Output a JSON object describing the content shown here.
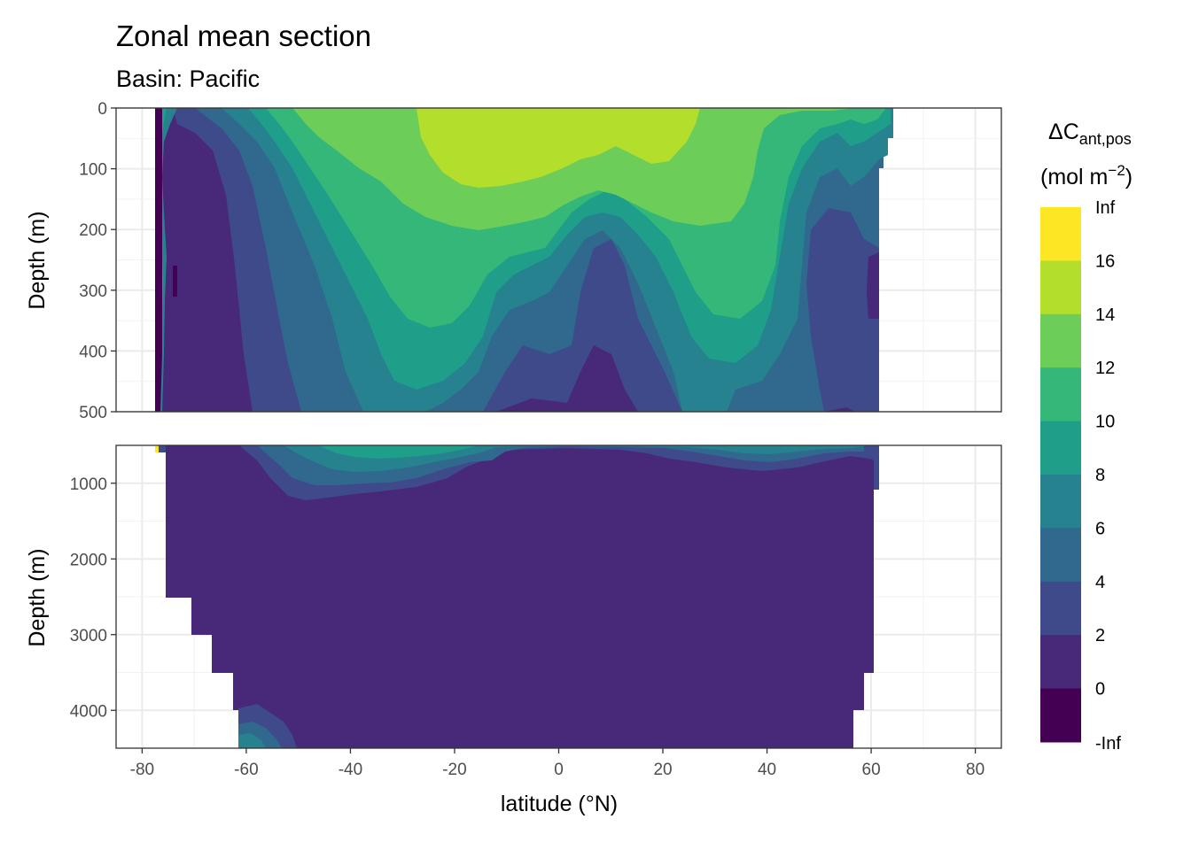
{
  "chart_data": {
    "type": "heatmap",
    "title": "Zonal mean section",
    "subtitle": "Basin: Pacific",
    "xlabel": "latitude (°N)",
    "ylabel": "Depth (m)",
    "xlim": [
      -85,
      85
    ],
    "x_ticks": [
      -80,
      -60,
      -40,
      -20,
      0,
      20,
      40,
      60,
      80
    ],
    "panels": [
      {
        "name": "upper",
        "ylim": [
          0,
          500
        ],
        "y_ticks": [
          0,
          100,
          200,
          300,
          400,
          500
        ]
      },
      {
        "name": "lower",
        "ylim": [
          500,
          4500
        ],
        "y_ticks": [
          1000,
          2000,
          3000,
          4000
        ]
      }
    ],
    "legend": {
      "title_main": "ΔC",
      "title_sub": "ant,pos",
      "unit_text": "(mol m",
      "unit_sup": "−2",
      "unit_close": ")",
      "breaks": [
        "Inf",
        "16",
        "14",
        "12",
        "10",
        "8",
        "6",
        "4",
        "2",
        "0",
        "-Inf"
      ],
      "colors": [
        "#FDE725",
        "#B4DE2C",
        "#6DCD59",
        "#35B779",
        "#1F9E89",
        "#26828E",
        "#31688E",
        "#3E4A89",
        "#482878",
        "#440154"
      ]
    },
    "coverage": {
      "upper_lat_range": [
        -77,
        65
      ],
      "lower_lat_range": [
        -75,
        61
      ]
    }
  }
}
